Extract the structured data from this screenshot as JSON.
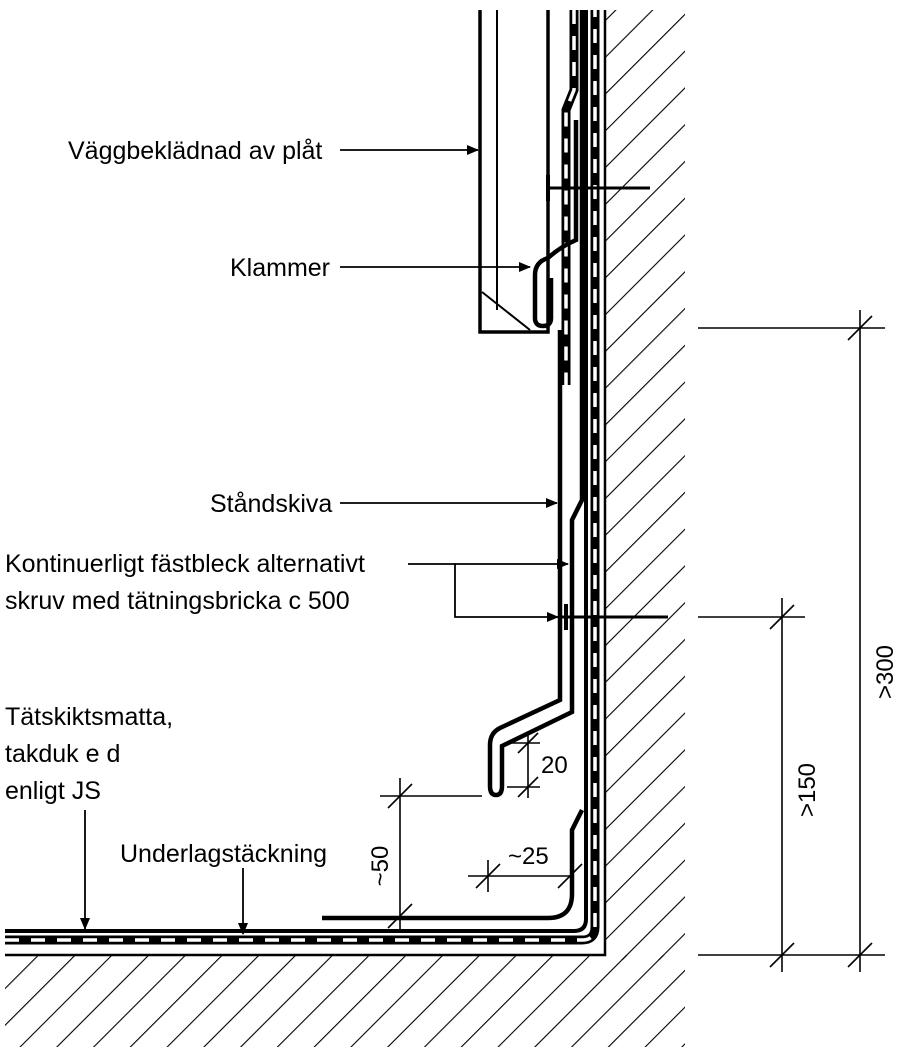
{
  "labels": {
    "wall_cladding": "Väggbeklädnad av plåt",
    "clamp": "Klammer",
    "upstand": "Ståndskiva",
    "fastening_line1": "Kontinuerligt fästbleck alternativt",
    "fastening_line2": "skruv med tätningsbricka c 500",
    "membrane_line1": "Tätskiktsmatta,",
    "membrane_line2": "takduk e d",
    "membrane_line3": "enligt JS",
    "underlay": "Underlagstäckning"
  },
  "dimensions": {
    "min_300": ">300",
    "min_150": ">150",
    "approx_50": "~50",
    "approx_25": "~25",
    "twenty": "20"
  },
  "colors": {
    "line": "#000000",
    "background": "#ffffff"
  }
}
